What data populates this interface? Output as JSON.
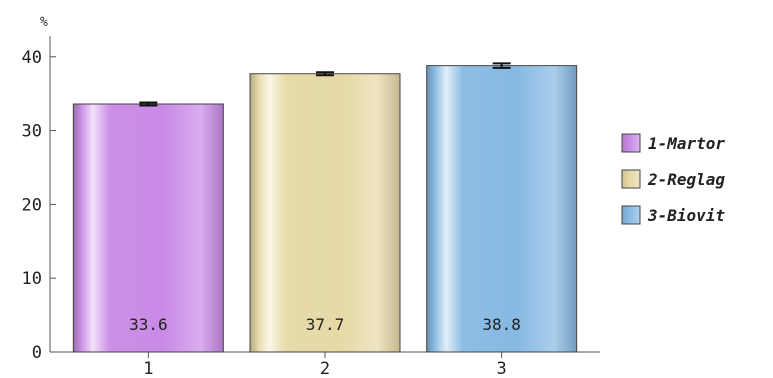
{
  "chart_data": {
    "type": "bar",
    "unit_label": "%",
    "categories": [
      "1",
      "2",
      "3"
    ],
    "values": [
      33.6,
      37.7,
      38.8
    ],
    "value_labels": [
      "33.6",
      "37.7",
      "38.8"
    ],
    "error": [
      0.2,
      0.2,
      0.3
    ],
    "ylim": [
      0,
      42
    ],
    "yticks": [
      0,
      10,
      20,
      30,
      40
    ],
    "ytick_labels": [
      "0",
      "10",
      "20",
      "30",
      "40"
    ],
    "grid": false,
    "legend_position": "right",
    "legend": [
      {
        "label": "1-Martor",
        "color": "#c98ae6"
      },
      {
        "label": "2-Reglag",
        "color": "#e6d9a6"
      },
      {
        "label": "3-Biovit",
        "color": "#86b9e3"
      }
    ],
    "bar_colors": [
      "#c98ae6",
      "#e6d9a6",
      "#86b9e3"
    ],
    "title": "",
    "xlabel": "",
    "ylabel": ""
  }
}
